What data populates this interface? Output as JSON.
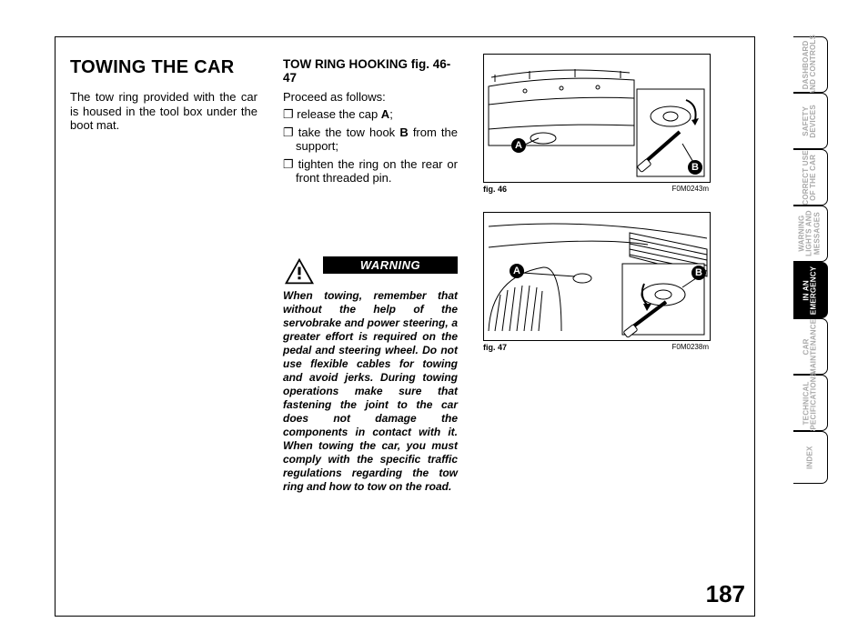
{
  "page_number": "187",
  "col1": {
    "title": "TOWING THE CAR",
    "intro": "The tow ring provided with the car is housed in the tool box under the boot mat."
  },
  "col2": {
    "subheading": "TOW RING HOOKING fig. 46-47",
    "lead": "Proceed as follows:",
    "bul1_pre": "release the cap ",
    "bul1_b": "A",
    "bul1_post": ";",
    "bul2_pre": "take the tow hook ",
    "bul2_b": "B",
    "bul2_post": " from the support;",
    "bul3": "tighten the ring on the rear or front threaded pin.",
    "warn_label": "WARNING",
    "warn_body": "When towing, remember that without the help of the servobrake and power steering, a greater effort is required on the pedal and steering wheel. Do not use flexible cables for towing and avoid jerks. During towing operations make sure that fastening the joint to the car does not damage the components in contact with it. When towing the car, you must comply with the specific traffic regulations regarding the tow ring and how to tow on the road."
  },
  "figs": {
    "fig46_label": "fig. 46",
    "fig46_code": "F0M0243m",
    "fig47_label": "fig. 47",
    "fig47_code": "F0M0238m",
    "labelA": "A",
    "labelB": "B"
  },
  "tabs": [
    {
      "label": "DASHBOARD\nAND CONTROLS",
      "active": false
    },
    {
      "label": "SAFETY\nDEVICES",
      "active": false
    },
    {
      "label": "CORRECT USE\nOF THE CAR",
      "active": false
    },
    {
      "label": "WARNING\nLIGHTS AND\nMESSAGES",
      "active": false
    },
    {
      "label": "IN AN\nEMERGENCY",
      "active": true
    },
    {
      "label": "CAR\nMAINTENANCE",
      "active": false
    },
    {
      "label": "TECHNICAL\nSPECIFICATIONS",
      "active": false
    },
    {
      "label": "INDEX",
      "active": false
    }
  ]
}
